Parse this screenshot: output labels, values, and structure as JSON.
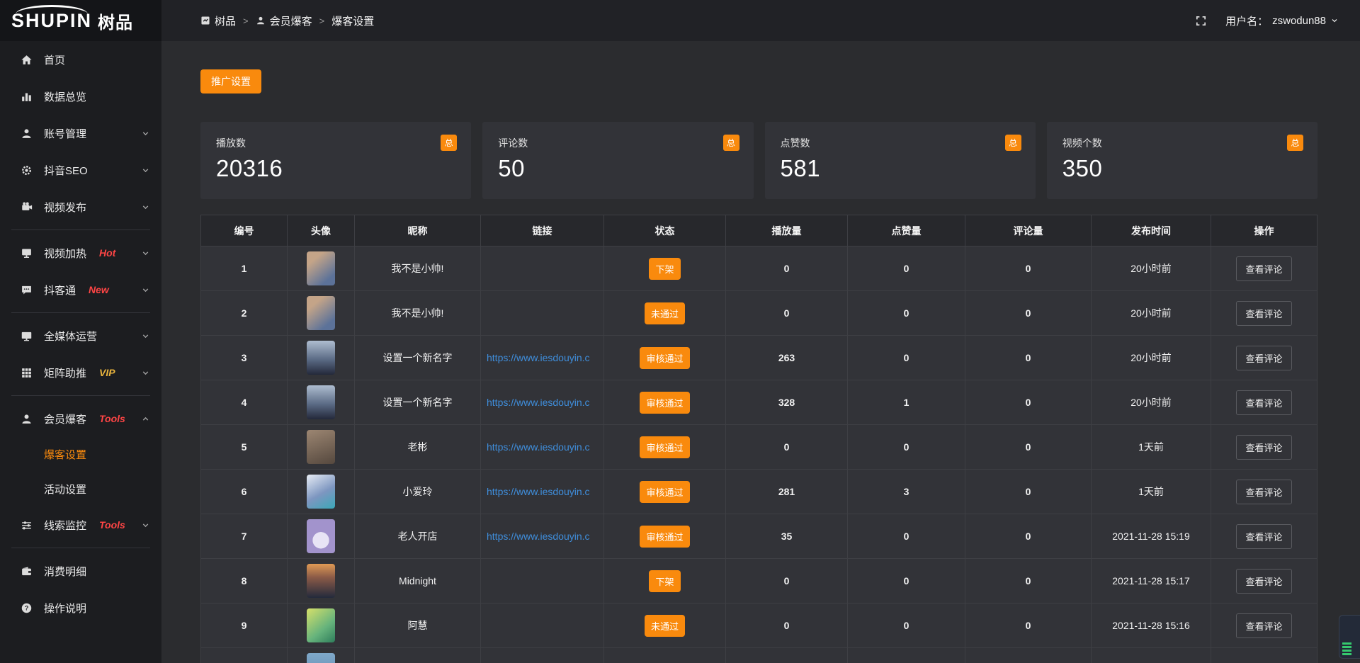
{
  "brand": {
    "logo_en": "SHUPIN",
    "logo_cn": "树品"
  },
  "topbar": {
    "breadcrumb": [
      {
        "label": "树品",
        "icon": "app-icon"
      },
      {
        "label": "会员爆客",
        "icon": "breadcrumb-user-icon"
      },
      {
        "label": "爆客设置"
      }
    ],
    "separator": ">",
    "username_label": "用户名：",
    "username": "zswodun88"
  },
  "sidebar": {
    "groups": [
      {
        "items": [
          {
            "key": "home",
            "label": "首页",
            "icon": "home-icon"
          },
          {
            "key": "data-overview",
            "label": "数据总览",
            "icon": "chart-icon"
          },
          {
            "key": "account-management",
            "label": "账号管理",
            "icon": "user-icon",
            "chevron": "down"
          },
          {
            "key": "douyin-seo",
            "label": "抖音SEO",
            "icon": "gear-icon",
            "chevron": "down"
          },
          {
            "key": "video-publish",
            "label": "视频发布",
            "icon": "video-icon",
            "chevron": "down"
          }
        ]
      },
      {
        "items": [
          {
            "key": "video-heat",
            "label": "视频加热",
            "icon": "heat-icon",
            "tag": "Hot",
            "tag_color": "#ff4545",
            "chevron": "down"
          },
          {
            "key": "doukotong",
            "label": "抖客通",
            "icon": "chat-icon",
            "tag": "New",
            "tag_color": "#ff4545",
            "chevron": "down"
          }
        ]
      },
      {
        "items": [
          {
            "key": "all-media",
            "label": "全媒体运营",
            "icon": "monitor-icon",
            "chevron": "down"
          },
          {
            "key": "matrix-boost",
            "label": "矩阵助推",
            "icon": "grid-icon",
            "tag": "VIP",
            "tag_color": "#e9b43d",
            "chevron": "down"
          }
        ]
      },
      {
        "items": [
          {
            "key": "member-baoke",
            "label": "会员爆客",
            "icon": "member-icon",
            "tag": "Tools",
            "tag_color": "#ff4545",
            "chevron": "up",
            "children": [
              {
                "key": "baoke-settings",
                "label": "爆客设置",
                "active": true
              },
              {
                "key": "activity-settings",
                "label": "活动设置",
                "active": false
              }
            ]
          },
          {
            "key": "clue-monitor",
            "label": "线索监控",
            "icon": "sliders-icon",
            "tag": "Tools",
            "tag_color": "#ff4545",
            "chevron": "down"
          }
        ]
      },
      {
        "items": [
          {
            "key": "consumption-detail",
            "label": "消费明细",
            "icon": "wallet-icon"
          },
          {
            "key": "operation-guide",
            "label": "操作说明",
            "icon": "help-icon"
          }
        ]
      }
    ]
  },
  "actions": {
    "promo_button": "推广设置"
  },
  "stats": [
    {
      "label": "播放数",
      "value": "20316",
      "badge": "总"
    },
    {
      "label": "评论数",
      "value": "50",
      "badge": "总"
    },
    {
      "label": "点赞数",
      "value": "581",
      "badge": "总"
    },
    {
      "label": "视频个数",
      "value": "350",
      "badge": "总"
    }
  ],
  "table": {
    "columns": [
      "编号",
      "头像",
      "昵称",
      "链接",
      "状态",
      "播放量",
      "点赞量",
      "评论量",
      "发布时间",
      "操作"
    ],
    "action_label": "查看评论",
    "rows": [
      {
        "id": "1",
        "nickname": "我不是小帅!",
        "link": "",
        "status": "下架",
        "plays": "0",
        "likes": "0",
        "comments": "0",
        "time": "20小时前",
        "avatar_bg": "linear-gradient(140deg,#c4a488 25%,#5c7299 80%)"
      },
      {
        "id": "2",
        "nickname": "我不是小帅!",
        "link": "",
        "status": "未通过",
        "plays": "0",
        "likes": "0",
        "comments": "0",
        "time": "20小时前",
        "avatar_bg": "linear-gradient(140deg,#c4a488 25%,#5c7299 80%)"
      },
      {
        "id": "3",
        "nickname": "设置一个新名字",
        "link": "https://www.iesdouyin.c",
        "status": "审核通过",
        "plays": "263",
        "likes": "0",
        "comments": "0",
        "time": "20小时前",
        "avatar_bg": "linear-gradient(180deg,#aebdd0 0%,#5b6b85 55%,#23283a 100%)"
      },
      {
        "id": "4",
        "nickname": "设置一个新名字",
        "link": "https://www.iesdouyin.c",
        "status": "审核通过",
        "plays": "328",
        "likes": "1",
        "comments": "0",
        "time": "20小时前",
        "avatar_bg": "linear-gradient(180deg,#aebdd0 0%,#5b6b85 55%,#23283a 100%)"
      },
      {
        "id": "5",
        "nickname": "老彬",
        "link": "https://www.iesdouyin.c",
        "status": "审核通过",
        "plays": "0",
        "likes": "0",
        "comments": "0",
        "time": "1天前",
        "avatar_bg": "linear-gradient(160deg,#9c8672,#55483e)"
      },
      {
        "id": "6",
        "nickname": "小爱玲",
        "link": "https://www.iesdouyin.c",
        "status": "审核通过",
        "plays": "281",
        "likes": "3",
        "comments": "0",
        "time": "1天前",
        "avatar_bg": "linear-gradient(150deg,#e8edf5,#7d96c0 55%,#3aa8b8)"
      },
      {
        "id": "7",
        "nickname": "老人开店",
        "link": "https://www.iesdouyin.c",
        "status": "审核通过",
        "plays": "35",
        "likes": "0",
        "comments": "0",
        "time": "2021-11-28 15:19",
        "avatar_bg": "radial-gradient(circle at 50% 62%, #e8e4f5 0 32%, #a293cc 33%)"
      },
      {
        "id": "8",
        "nickname": "Midnight",
        "link": "",
        "status": "下架",
        "plays": "0",
        "likes": "0",
        "comments": "0",
        "time": "2021-11-28 15:17",
        "avatar_bg": "linear-gradient(180deg,#e09a54 0%,#8a5a47 40%,#232a3c 100%)"
      },
      {
        "id": "9",
        "nickname": "阿慧",
        "link": "",
        "status": "未通过",
        "plays": "0",
        "likes": "0",
        "comments": "0",
        "time": "2021-11-28 15:16",
        "avatar_bg": "linear-gradient(140deg,#d7e06a,#66b37c 60%,#2e7d5b)"
      },
      {
        "id": "",
        "nickname": "",
        "link": "",
        "status": "",
        "plays": "",
        "likes": "",
        "comments": "",
        "time": "",
        "avatar_bg": "linear-gradient(180deg,#7fa8c9,#5d87ad)",
        "partial": true
      }
    ]
  }
}
